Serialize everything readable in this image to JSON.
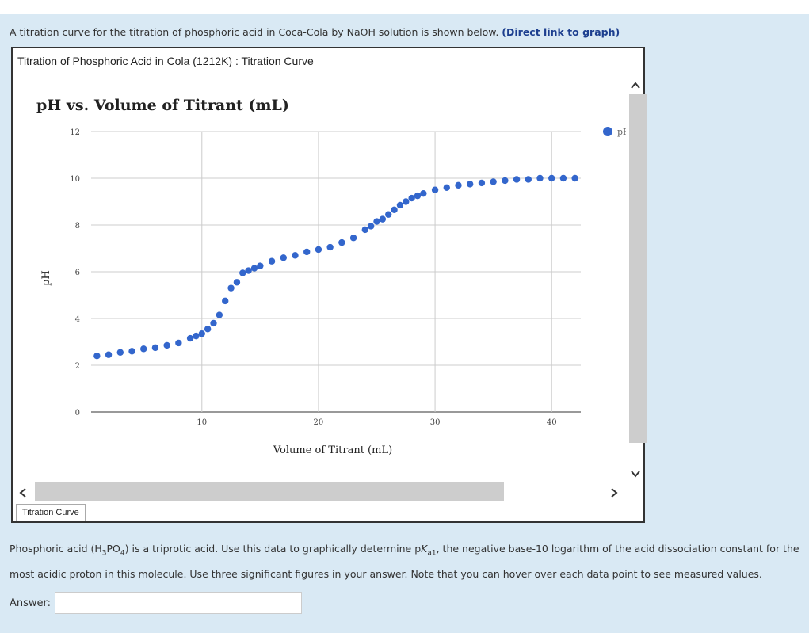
{
  "intro": {
    "text": "A titration curve for the titration of phosphoric acid in Coca-Cola by NaOH solution is shown below.",
    "link": "(Direct link to graph)"
  },
  "graph_window": {
    "title": "Titration of Phosphoric Acid in Cola (1212K) : Titration Curve",
    "tab_label": "Titration Curve"
  },
  "chart_data": {
    "type": "scatter",
    "title": "pH vs. Volume of Titrant (mL)",
    "xlabel": "Volume of Titrant (mL)",
    "ylabel": "pH",
    "xlim": [
      0.5,
      42.5
    ],
    "ylim": [
      0,
      12
    ],
    "xticks": [
      10,
      20,
      30,
      40
    ],
    "yticks": [
      0,
      2,
      4,
      6,
      8,
      10,
      12
    ],
    "grid": true,
    "legend_position": "top-right",
    "color": "#3366cc",
    "series": [
      {
        "name": "pH",
        "x": [
          1,
          2,
          3,
          4,
          5,
          6,
          7,
          8,
          9,
          9.5,
          10,
          10.5,
          11,
          11.5,
          12,
          12.5,
          13,
          13.5,
          14,
          14.5,
          15,
          16,
          17,
          18,
          19,
          20,
          21,
          22,
          23,
          24,
          24.5,
          25,
          25.5,
          26,
          26.5,
          27,
          27.5,
          28,
          28.5,
          29,
          30,
          31,
          32,
          33,
          34,
          35,
          36,
          37,
          38,
          39,
          40,
          41,
          42
        ],
        "y": [
          2.4,
          2.45,
          2.55,
          2.6,
          2.7,
          2.75,
          2.85,
          2.95,
          3.15,
          3.25,
          3.35,
          3.55,
          3.8,
          4.15,
          4.75,
          5.3,
          5.55,
          5.95,
          6.05,
          6.15,
          6.25,
          6.45,
          6.6,
          6.7,
          6.85,
          6.95,
          7.05,
          7.25,
          7.45,
          7.8,
          7.95,
          8.15,
          8.25,
          8.45,
          8.65,
          8.85,
          9.0,
          9.15,
          9.25,
          9.35,
          9.5,
          9.6,
          9.7,
          9.75,
          9.8,
          9.85,
          9.9,
          9.95,
          9.95,
          10.0,
          10.0,
          10.0,
          10.0
        ]
      }
    ]
  },
  "question": {
    "part1": "Phosphoric acid (H",
    "sub3": "3",
    "part2": "PO",
    "sub4": "4",
    "part3": ") is a triprotic acid. Use this data to graphically determine p",
    "ka": "K",
    "ka_sub": "a1",
    "part4": ", the negative base-10 logarithm of the acid dissociation constant for the most acidic proton in this molecule. Use three significant figures in your answer. Note that you can hover over each data point to see measured values."
  },
  "answer": {
    "label": "Answer:",
    "value": ""
  },
  "icons": {
    "up": "chevron-up-icon",
    "down": "chevron-down-icon",
    "left": "chevron-left-icon",
    "right": "chevron-right-icon"
  }
}
